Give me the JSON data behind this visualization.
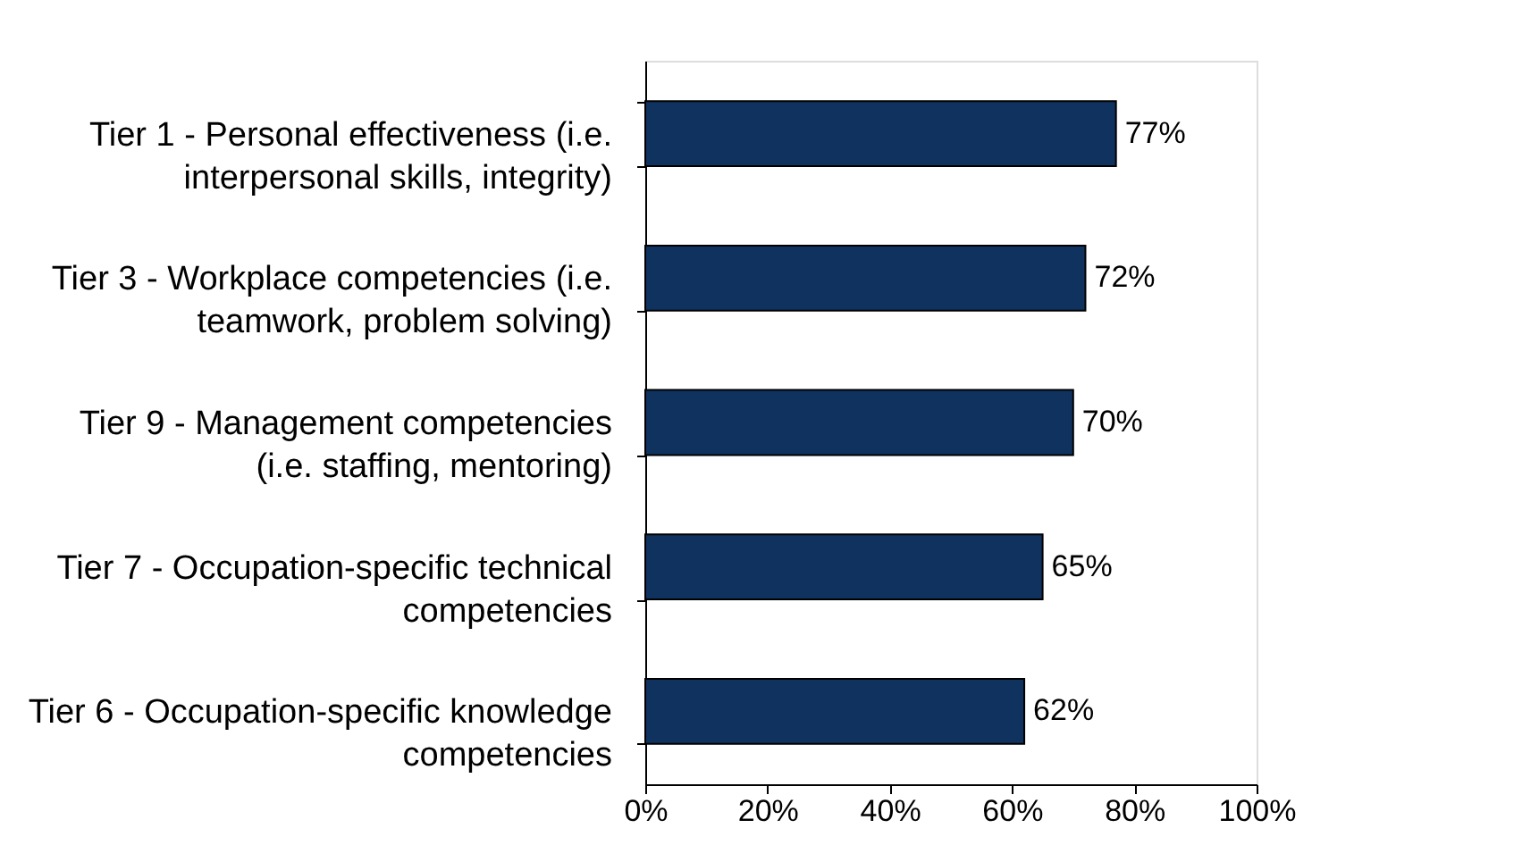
{
  "chart_data": {
    "type": "bar",
    "orientation": "horizontal",
    "categories": [
      "Tier 1 - Personal effectiveness (i.e.\ninterpersonal skills, integrity)",
      "Tier 3 - Workplace competencies (i.e.\nteamwork, problem solving)",
      "Tier 9 - Management competencies\n(i.e. staffing, mentoring)",
      "Tier 7 - Occupation-specific technical\ncompetencies",
      "Tier 6 - Occupation-specific knowledge\ncompetencies"
    ],
    "values": [
      77,
      72,
      70,
      65,
      62
    ],
    "value_labels": [
      "77%",
      "72%",
      "70%",
      "65%",
      "62%"
    ],
    "color": "#10325f",
    "xlim": [
      0,
      100
    ],
    "xticks": [
      {
        "value": 0,
        "label": "0%"
      },
      {
        "value": 20,
        "label": "20%"
      },
      {
        "value": 40,
        "label": "40%"
      },
      {
        "value": 60,
        "label": "60%"
      },
      {
        "value": 80,
        "label": "80%"
      },
      {
        "value": 100,
        "label": "100%"
      }
    ],
    "grid": false
  }
}
